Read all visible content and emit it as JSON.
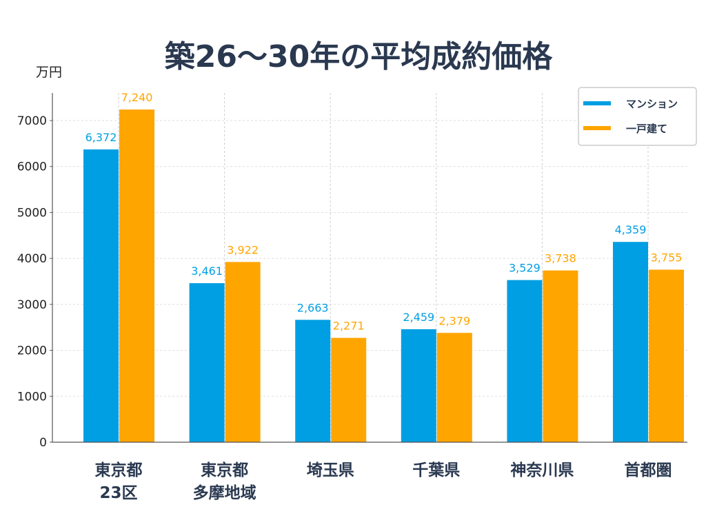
{
  "chart_data": {
    "type": "bar",
    "title": "築26〜30年の平均成約価格",
    "ylabel": "万円",
    "xlabel": "",
    "categories": [
      [
        "東京都",
        "23区"
      ],
      [
        "東京都",
        "多摩地域"
      ],
      [
        "埼玉県"
      ],
      [
        "千葉県"
      ],
      [
        "神奈川県"
      ],
      [
        "首都圏"
      ]
    ],
    "series": [
      {
        "name": "マンション",
        "color": "#009fe3",
        "values": [
          6372,
          3461,
          2663,
          2459,
          3529,
          4359
        ],
        "labels": [
          "6,372",
          "3,461",
          "2,663",
          "2,459",
          "3,529",
          "4,359"
        ]
      },
      {
        "name": "一戸建て",
        "color": "#ffa500",
        "values": [
          7240,
          3922,
          2271,
          2379,
          3738,
          3755
        ],
        "labels": [
          "7,240",
          "3,922",
          "2,271",
          "2,379",
          "3,738",
          "3,755"
        ]
      }
    ],
    "ylim": [
      0,
      7600
    ],
    "yticks": [
      "0",
      "1000",
      "2000",
      "3000",
      "4000",
      "5000",
      "6000",
      "7000"
    ],
    "grid": true,
    "legend": "top-right"
  }
}
